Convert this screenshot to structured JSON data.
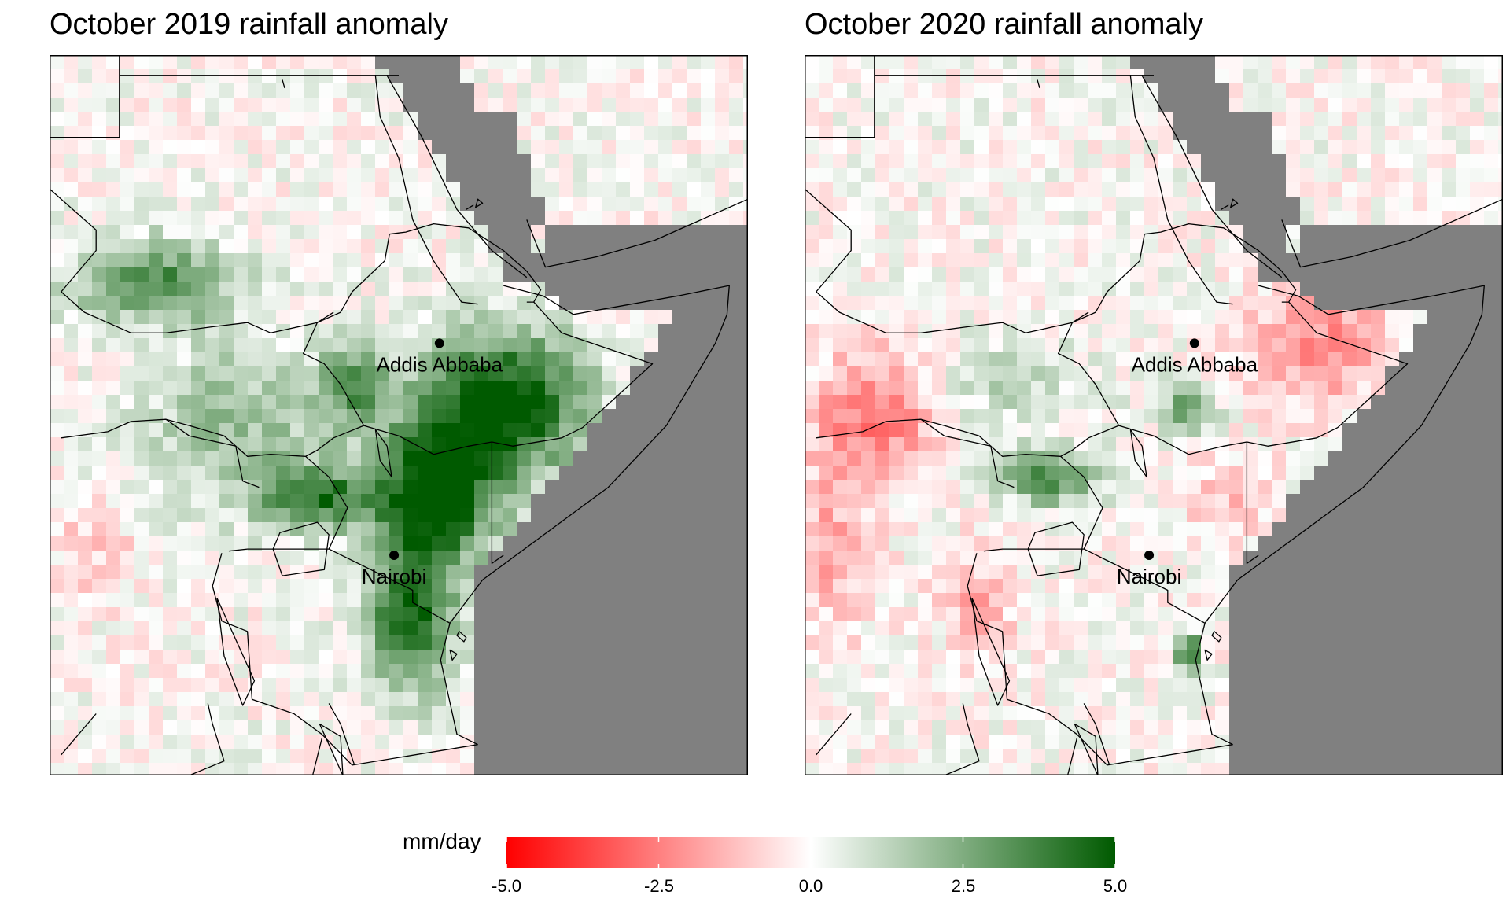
{
  "panels": [
    {
      "title": "October 2019 rainfall anomaly",
      "cities": [
        {
          "name": "Addis Abbaba",
          "lon": 38.75,
          "lat": 9.0
        },
        {
          "name": "Nairobi",
          "lon": 36.8,
          "lat": -1.3
        }
      ],
      "anomaly_pattern": "strongly wet across Ethiopia, Kenya, Somalia and Uganda"
    },
    {
      "title": "October 2020 rainfall anomaly",
      "cities": [
        {
          "name": "Addis Abbaba",
          "lon": 38.75,
          "lat": 9.0
        },
        {
          "name": "Nairobi",
          "lon": 36.8,
          "lat": -1.3
        }
      ],
      "anomaly_pattern": "mostly dry across Somalia, eastern Ethiopia and South Sudan; wet patches over Uganda and southern Ethiopia"
    }
  ],
  "colorbar": {
    "unit": "mm/day",
    "ticks": [
      "-5.0",
      "-2.5",
      "0.0",
      "2.5",
      "5.0"
    ],
    "range": [
      -5.0,
      5.0
    ],
    "colors": {
      "negative": "#ff0000",
      "zero": "#ffffff",
      "positive": "#005a00"
    }
  },
  "colors": {
    "ocean_mask": "#808080",
    "border": "#000000"
  }
}
